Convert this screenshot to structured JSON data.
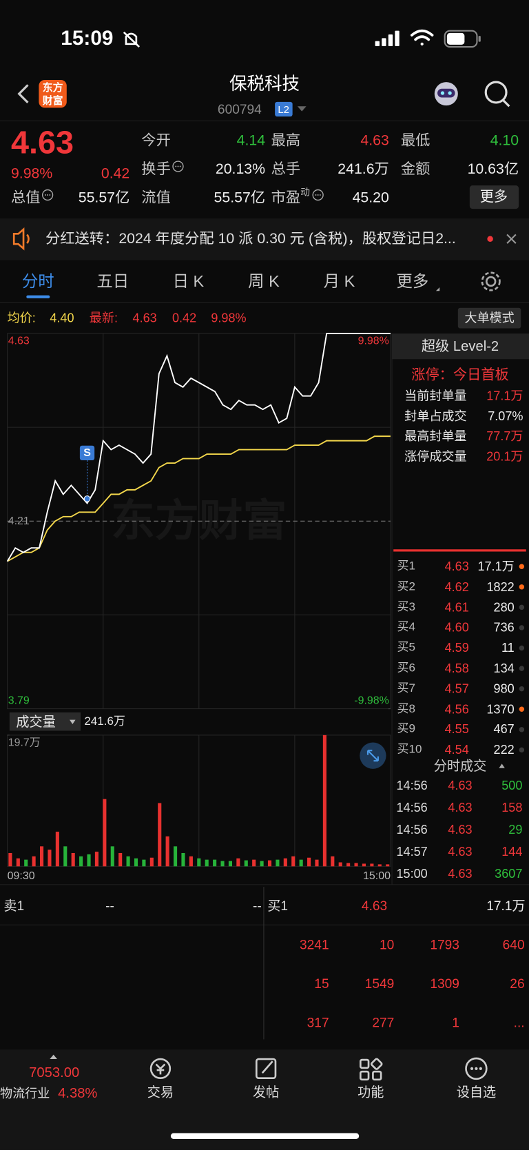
{
  "status_bar": {
    "time": "15:09"
  },
  "header": {
    "logo": [
      "东方",
      "财富"
    ],
    "name": "保税科技",
    "code": "600794",
    "level": "L2"
  },
  "quote": {
    "price": "4.63",
    "change_pct": "9.98%",
    "change": "0.42",
    "stats": [
      [
        {
          "label": "今开",
          "value": "4.14",
          "color": "#2fbf3c"
        },
        {
          "label": "最高",
          "value": "4.63",
          "color": "#f0373a"
        },
        {
          "label": "最低",
          "value": "4.10",
          "color": "#2fbf3c"
        }
      ],
      [
        {
          "label": "换手",
          "value": "20.13%",
          "info": true
        },
        {
          "label": "总手",
          "value": "241.6万"
        },
        {
          "label": "金额",
          "value": "10.63亿"
        }
      ],
      [
        {
          "label": "总值",
          "value": "55.57亿",
          "info": true
        },
        {
          "label": "流值",
          "value": "55.57亿"
        },
        {
          "label": "市盈",
          "sup": "动",
          "value": "45.20",
          "info": true
        }
      ]
    ],
    "more_button": "更多"
  },
  "notice": {
    "text": "分红送转：2024 年度分配 10 派 0.30 元 (含税)，股权登记日2..."
  },
  "tabs": {
    "items": [
      "分时",
      "五日",
      "日 K",
      "周 K",
      "月 K",
      "更多"
    ],
    "selected": 0
  },
  "info_row": {
    "avg_label": "均价:",
    "avg": "4.40",
    "last_label": "最新:",
    "last": "4.63",
    "change": "0.42",
    "change_pct": "9.98%",
    "button": "大单模式"
  },
  "chart_data": [
    {
      "type": "line",
      "watermark": "东方财富",
      "grid": true,
      "x": [
        "09:30",
        "09:35",
        "09:40",
        "09:45",
        "09:50",
        "09:55",
        "10:00",
        "10:05",
        "10:10",
        "10:15",
        "10:20",
        "10:25",
        "10:30",
        "10:35",
        "10:40",
        "10:45",
        "10:50",
        "10:55",
        "11:00",
        "11:05",
        "11:10",
        "11:15",
        "11:20",
        "11:25",
        "11:30",
        "13:05",
        "13:10",
        "13:15",
        "13:20",
        "13:25",
        "13:30",
        "13:35",
        "13:40",
        "13:45",
        "13:50",
        "13:55",
        "14:00",
        "14:05",
        "14:10",
        "14:15",
        "14:20",
        "14:25",
        "14:30",
        "14:35",
        "14:40",
        "14:45",
        "14:50",
        "14:55",
        "15:00"
      ],
      "series": [
        {
          "color": "#ffffff",
          "values": [
            4.12,
            4.15,
            4.14,
            4.15,
            4.15,
            4.23,
            4.3,
            4.27,
            4.29,
            4.27,
            4.25,
            4.28,
            4.39,
            4.37,
            4.38,
            4.37,
            4.36,
            4.34,
            4.36,
            4.54,
            4.58,
            4.52,
            4.51,
            4.53,
            4.52,
            4.51,
            4.5,
            4.47,
            4.46,
            4.48,
            4.47,
            4.47,
            4.46,
            4.47,
            4.43,
            4.44,
            4.51,
            4.49,
            4.49,
            4.52,
            4.63,
            4.63,
            4.63,
            4.63,
            4.63,
            4.63,
            4.63,
            4.63,
            4.63
          ]
        },
        {
          "color": "#f2d64b",
          "values": [
            4.12,
            4.13,
            4.14,
            4.14,
            4.15,
            4.19,
            4.21,
            4.22,
            4.22,
            4.23,
            4.23,
            4.23,
            4.25,
            4.27,
            4.27,
            4.28,
            4.28,
            4.29,
            4.3,
            4.33,
            4.34,
            4.34,
            4.35,
            4.35,
            4.35,
            4.36,
            4.36,
            4.36,
            4.36,
            4.37,
            4.37,
            4.37,
            4.37,
            4.37,
            4.37,
            4.37,
            4.38,
            4.38,
            4.38,
            4.38,
            4.39,
            4.39,
            4.39,
            4.39,
            4.39,
            4.39,
            4.4,
            4.4,
            4.4
          ]
        }
      ],
      "ylim": [
        3.79,
        4.63
      ],
      "yticks": [
        3.79,
        4.21,
        4.63
      ],
      "y2lim": [
        -9.98,
        9.98
      ],
      "y2ticks": [
        {
          "value": -9.98,
          "label": "-9.98%"
        },
        {
          "value": 9.98,
          "label": "9.98%"
        }
      ],
      "markers": [
        {
          "label": "S",
          "x": "10:20",
          "value": 4.26
        }
      ]
    },
    {
      "type": "bar",
      "title": "成交量",
      "total": "241.6万",
      "categories": [
        "09:30",
        "09:35",
        "09:40",
        "09:45",
        "09:50",
        "09:55",
        "10:00",
        "10:05",
        "10:10",
        "10:15",
        "10:20",
        "10:25",
        "10:30",
        "10:35",
        "10:40",
        "10:45",
        "10:50",
        "10:55",
        "11:00",
        "11:05",
        "11:10",
        "11:15",
        "11:20",
        "11:25",
        "11:30",
        "13:05",
        "13:10",
        "13:15",
        "13:20",
        "13:25",
        "13:30",
        "13:35",
        "13:40",
        "13:45",
        "13:50",
        "13:55",
        "14:00",
        "14:05",
        "14:10",
        "14:15",
        "14:20",
        "14:25",
        "14:30",
        "14:35",
        "14:40",
        "14:45",
        "14:50",
        "14:55",
        "15:00"
      ],
      "values": [
        2.0,
        1.2,
        1.0,
        1.5,
        3.0,
        2.5,
        5.2,
        3.0,
        2.0,
        1.5,
        1.8,
        2.2,
        10.1,
        3.0,
        2.0,
        1.5,
        1.2,
        1.0,
        1.3,
        9.5,
        4.5,
        3.0,
        2.0,
        1.5,
        1.2,
        1.0,
        1.0,
        0.8,
        0.8,
        1.2,
        0.9,
        1.0,
        0.8,
        0.9,
        1.0,
        1.2,
        1.5,
        1.0,
        1.3,
        1.0,
        19.7,
        1.5,
        0.6,
        0.5,
        0.5,
        0.4,
        0.4,
        0.3,
        0.3
      ],
      "ylim": [
        0,
        19.7
      ],
      "yticks": [
        {
          "value": 19.7,
          "label": "19.7万"
        }
      ]
    }
  ],
  "level2": {
    "title": "超级 Level-2",
    "status": "涨停：今日首板",
    "rows": [
      {
        "label": "当前封单量",
        "value": "17.1万",
        "color": "#f0373a"
      },
      {
        "label": "封单占成交",
        "value": "7.07%",
        "color": "#eeeeee"
      },
      {
        "label": "最高封单量",
        "value": "77.7万",
        "color": "#f0373a"
      },
      {
        "label": "涨停成交量",
        "value": "20.1万",
        "color": "#f0373a"
      }
    ]
  },
  "order_book": [
    {
      "label": "买1",
      "price": "4.63",
      "volume": "17.1万",
      "dot": "#ff6a1a"
    },
    {
      "label": "买2",
      "price": "4.62",
      "volume": "1822",
      "dot": "#ff6a1a"
    },
    {
      "label": "买3",
      "price": "4.61",
      "volume": "280",
      "dot": "#3a3a3a"
    },
    {
      "label": "买4",
      "price": "4.60",
      "volume": "736",
      "dot": "#3a3a3a"
    },
    {
      "label": "买5",
      "price": "4.59",
      "volume": "11",
      "dot": "#3a3a3a"
    },
    {
      "label": "买6",
      "price": "4.58",
      "volume": "134",
      "dot": "#3a3a3a"
    },
    {
      "label": "买7",
      "price": "4.57",
      "volume": "980",
      "dot": "#3a3a3a"
    },
    {
      "label": "买8",
      "price": "4.56",
      "volume": "1370",
      "dot": "#ff6a1a"
    },
    {
      "label": "买9",
      "price": "4.55",
      "volume": "467",
      "dot": "#3a3a3a"
    },
    {
      "label": "买10",
      "price": "4.54",
      "volume": "222",
      "dot": "#3a3a3a"
    }
  ],
  "trades": {
    "title": "分时成交",
    "rows": [
      {
        "time": "14:56",
        "price": "4.63",
        "volume": "500",
        "color": "#2fbf3c"
      },
      {
        "time": "14:56",
        "price": "4.63",
        "volume": "158",
        "color": "#f0373a"
      },
      {
        "time": "14:56",
        "price": "4.63",
        "volume": "29",
        "color": "#2fbf3c"
      },
      {
        "time": "14:57",
        "price": "4.63",
        "volume": "144",
        "color": "#f0373a"
      },
      {
        "time": "15:00",
        "price": "4.63",
        "volume": "3607",
        "color": "#2fbf3c"
      }
    ]
  },
  "depth": {
    "sell1_label": "卖1",
    "sell1_price": "--",
    "sell1_volume": "--",
    "buy1_label": "买1",
    "buy1_price": "4.63",
    "buy1_volume": "17.1万",
    "grid": [
      [
        "3241",
        "10",
        "1793",
        "640"
      ],
      [
        "15",
        "1549",
        "1309",
        "26"
      ],
      [
        "317",
        "277",
        "1",
        "..."
      ]
    ]
  },
  "nav": {
    "index_value": "7053.00",
    "index_name": "物流行业",
    "index_change": "4.38%",
    "items": [
      "交易",
      "发帖",
      "功能",
      "设自选"
    ]
  }
}
